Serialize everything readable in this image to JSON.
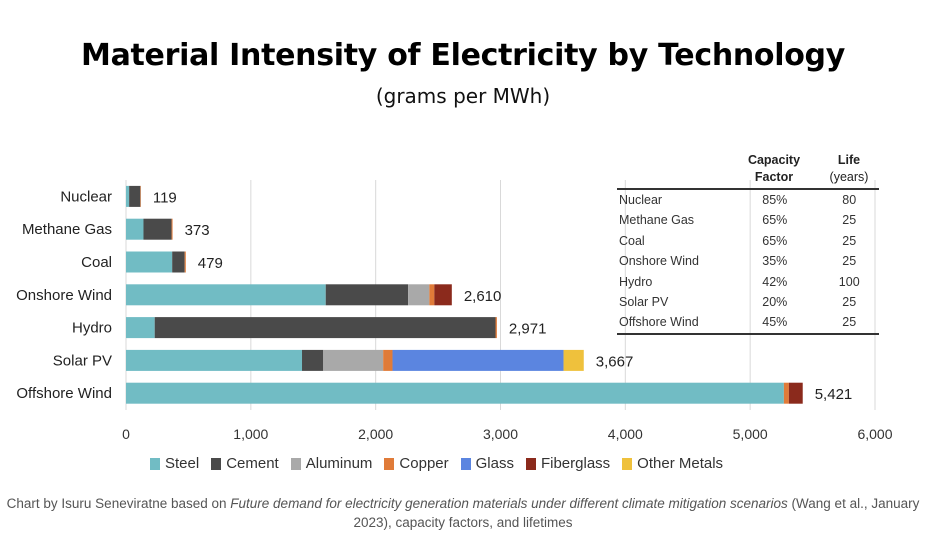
{
  "title": "Material Intensity of Electricity by Technology",
  "subtitle": "(grams per MWh)",
  "chart_data": {
    "type": "bar",
    "orientation": "horizontal",
    "stacked": true,
    "categories": [
      "Nuclear",
      "Methane Gas",
      "Coal",
      "Onshore Wind",
      "Hydro",
      "Solar PV",
      "Offshore Wind"
    ],
    "totals": [
      119,
      373,
      479,
      2610,
      2971,
      3667,
      5421
    ],
    "total_labels": [
      "119",
      "373",
      "479",
      "2,610",
      "2,971",
      "3,667",
      "5,421"
    ],
    "series": [
      {
        "name": "Steel",
        "color": "#71bcc4",
        "values": [
          25,
          140,
          370,
          1600,
          230,
          1410,
          5270
        ]
      },
      {
        "name": "Cement",
        "color": "#4a4a4a",
        "values": [
          90,
          225,
          100,
          660,
          2730,
          170,
          0
        ]
      },
      {
        "name": "Aluminum",
        "color": "#a9a9a9",
        "values": [
          0,
          0,
          0,
          170,
          0,
          480,
          0
        ]
      },
      {
        "name": "Copper",
        "color": "#e07b39",
        "values": [
          4,
          8,
          9,
          40,
          11,
          75,
          40
        ]
      },
      {
        "name": "Glass",
        "color": "#5b85e0",
        "values": [
          0,
          0,
          0,
          0,
          0,
          1370,
          0
        ]
      },
      {
        "name": "Fiberglass",
        "color": "#8b2a1c",
        "values": [
          0,
          0,
          0,
          140,
          0,
          0,
          111
        ]
      },
      {
        "name": "Other Metals",
        "color": "#efc13c",
        "values": [
          0,
          0,
          0,
          0,
          0,
          162,
          0
        ]
      }
    ],
    "xlim": [
      0,
      6000
    ],
    "xticks": [
      0,
      1000,
      2000,
      3000,
      4000,
      5000,
      6000
    ],
    "xtick_labels": [
      "0",
      "1,000",
      "2,000",
      "3,000",
      "4,000",
      "5,000",
      "6,000"
    ],
    "grid": "vertical",
    "legend_position": "bottom"
  },
  "table": {
    "header": {
      "cf_line1": "Capacity",
      "cf_line2": "Factor",
      "life_line1": "Life",
      "life_line2": "(years)"
    },
    "rows": [
      {
        "name": "Nuclear",
        "cf": "85%",
        "life": "80"
      },
      {
        "name": "Methane Gas",
        "cf": "65%",
        "life": "25"
      },
      {
        "name": "Coal",
        "cf": "65%",
        "life": "25"
      },
      {
        "name": "Onshore Wind",
        "cf": "35%",
        "life": "25"
      },
      {
        "name": "Hydro",
        "cf": "42%",
        "life": "100"
      },
      {
        "name": "Solar PV",
        "cf": "20%",
        "life": "25"
      },
      {
        "name": "Offshore Wind",
        "cf": "45%",
        "life": "25"
      }
    ]
  },
  "caption": {
    "prefix": "Chart by Isuru Seneviratne based on ",
    "italic": "Future demand for electricity generation materials under different climate mitigation scenarios",
    "suffix": " (Wang et al., January 2023), capacity factors, and lifetimes"
  }
}
